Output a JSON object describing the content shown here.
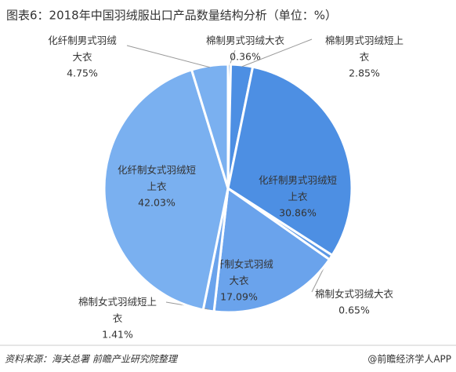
{
  "chart_data": {
    "type": "pie",
    "title": "图表6：2018年中国羽绒服出口产品数量结构分析（单位：%）",
    "categories": [
      "棉制男式羽绒大衣",
      "棉制男式羽绒短上衣",
      "化纤制男式羽绒短上衣",
      "棉制女式羽绒大衣",
      "化纤制女式羽绒大衣",
      "棉制女式羽绒短上衣",
      "化纤制女式羽绒短上衣",
      "化纤制男式羽绒大衣"
    ],
    "values": [
      0.36,
      2.85,
      30.86,
      0.65,
      17.09,
      1.41,
      42.03,
      4.75
    ],
    "value_labels": [
      "0.36%",
      "2.85%",
      "30.86%",
      "0.65%",
      "17.09%",
      "1.41%",
      "42.03%",
      "4.75%"
    ],
    "colors": [
      "#4d8fe3",
      "#4d8fe3",
      "#4d8fe3",
      "#5b98e6",
      "#6aa3ec",
      "#6aa3ec",
      "#7ab0f0",
      "#7ab0f0"
    ],
    "source": "资料来源：海关总署  前瞻产业研究院整理",
    "brand": "@前瞻经济学人APP"
  }
}
